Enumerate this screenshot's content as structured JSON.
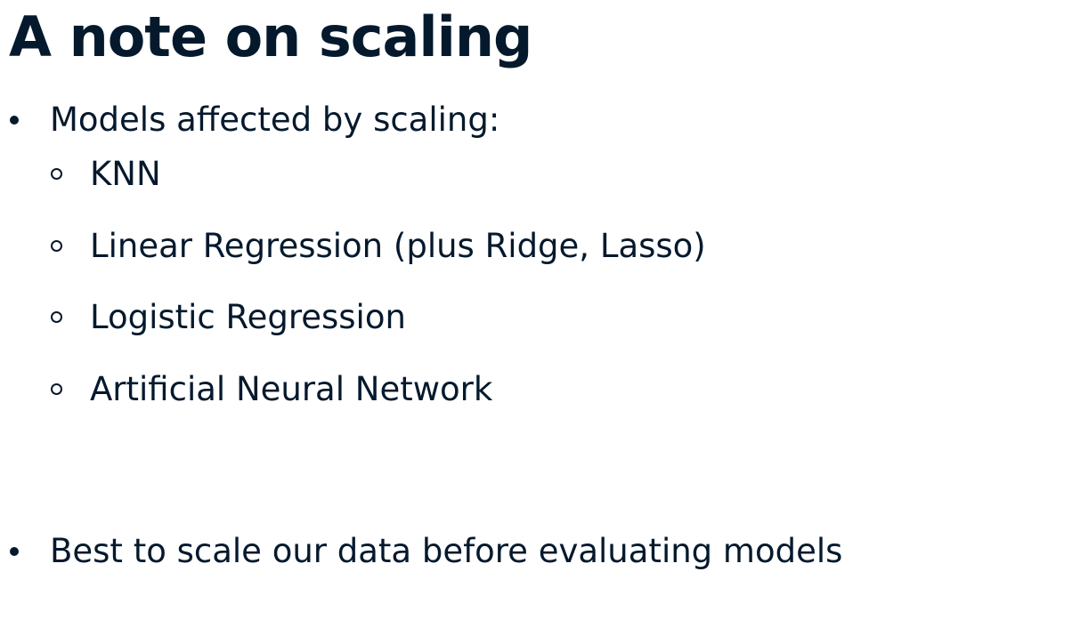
{
  "slide": {
    "title": "A note on scaling",
    "bullets": [
      {
        "text": "Models affected by scaling:",
        "sub_bullets": [
          "KNN",
          "Linear Regression (plus Ridge, Lasso)",
          "Logistic Regression",
          "Artificial Neural Network"
        ]
      },
      {
        "text": "Best to scale our data before evaluating models",
        "sub_bullets": []
      }
    ]
  }
}
